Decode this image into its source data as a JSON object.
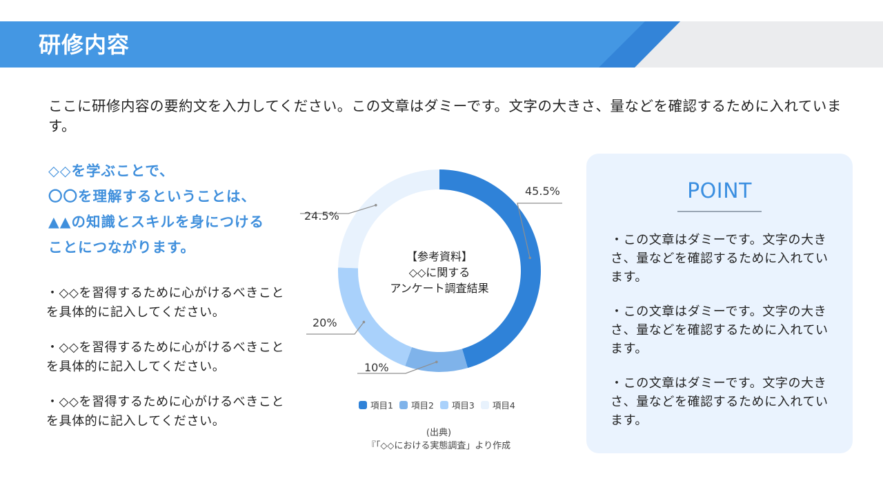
{
  "header": {
    "title": "研修内容",
    "band_color": "#4497e3",
    "band_dark_color": "#3384d8",
    "band_bg_color": "#ebecee"
  },
  "summary": "ここに研修内容の要約文を入力してください。この文章はダミーです。文字の大きさ、量などを確認するために入れています。",
  "lead": {
    "lines": [
      "◇◇を学ぶことで、",
      "〇〇を理解するということは、",
      "▲▲の知識とスキルを身につける",
      "ことにつながります。"
    ],
    "color": "#3f8fdc"
  },
  "bullets": [
    "・◇◇を習得するために心がけるべきことを具体的に記入してください。",
    "・◇◇を習得するために心がけるべきことを具体的に記入してください。",
    "・◇◇を習得するために心がけるべきことを具体的に記入してください。"
  ],
  "chart": {
    "center_lines": [
      "【参考資料】",
      "◇◇に関する",
      "アンケート調査結果"
    ],
    "legend": [
      {
        "label": "項目1",
        "color": "#2f82d8"
      },
      {
        "label": "項目2",
        "color": "#7fb3ea"
      },
      {
        "label": "項目3",
        "color": "#a9d1fb"
      },
      {
        "label": "項目4",
        "color": "#e8f2fd"
      }
    ],
    "source_lines": [
      "(出典)",
      "『「◇◇における実態調査」より作成"
    ]
  },
  "chart_data": {
    "type": "pie",
    "variant": "donut",
    "title": "【参考資料】◇◇に関するアンケート調査結果",
    "categories": [
      "項目1",
      "項目2",
      "項目3",
      "項目4"
    ],
    "values": [
      45.5,
      10,
      20,
      24.5
    ],
    "labels": [
      "45.5%",
      "10%",
      "20%",
      "24.5%"
    ],
    "colors": [
      "#2f82d8",
      "#7fb3ea",
      "#a9d1fb",
      "#e8f2fd"
    ],
    "start_angle": "12 o'clock, clockwise",
    "legend_position": "bottom",
    "source": "(出典) 『「◇◇における実態調査」より作成"
  },
  "point": {
    "heading": "POINT",
    "items": [
      "・この文章はダミーです。文字の大きさ、量などを確認するために入れています。",
      "・この文章はダミーです。文字の大きさ、量などを確認するために入れています。",
      "・この文章はダミーです。文字の大きさ、量などを確認するために入れています。"
    ],
    "card_color": "#eaf3fe",
    "heading_color": "#3a8ee0"
  }
}
